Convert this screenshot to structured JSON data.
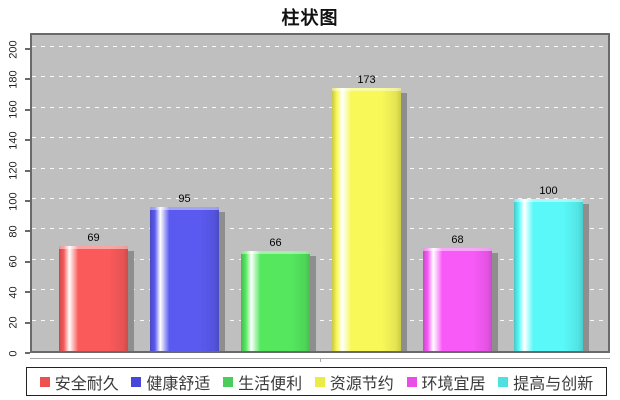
{
  "title": "柱状图",
  "chart_data": {
    "type": "bar",
    "title": "柱状图",
    "categories": [
      "安全耐久",
      "健康舒适",
      "生活便利",
      "资源节约",
      "环境宜居",
      "提高与创新"
    ],
    "values": [
      69,
      95,
      66,
      173,
      68,
      100
    ],
    "value_labels": true,
    "bar_colors": [
      "#fa5a5a",
      "#5a5af0",
      "#55e85f",
      "#f8f858",
      "#f85af8",
      "#5af8f8"
    ],
    "legend_colors": [
      "#ee5050",
      "#4747dd",
      "#4ccc5a",
      "#ebeb45",
      "#e84de8",
      "#4fe0e0"
    ],
    "ylim": [
      0,
      200
    ],
    "ytick_interval": 20,
    "ytick_labels": [
      "0",
      "20",
      "40",
      "60",
      "80",
      "100",
      "120",
      "140",
      "160",
      "180",
      "200"
    ],
    "xlabel": "",
    "ylabel": "",
    "grid": true,
    "gridline_color": "#ffffff",
    "plot_background": "#bfbfbf",
    "legend_position": "bottom"
  }
}
